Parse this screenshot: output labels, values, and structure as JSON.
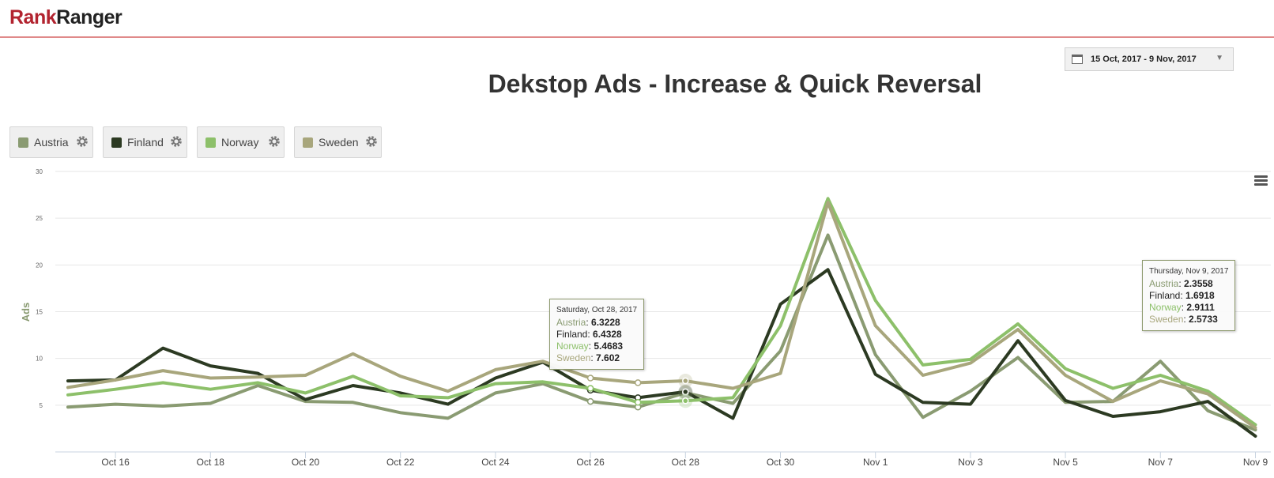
{
  "brand": {
    "rank": "Rank",
    "ranger": "Ranger"
  },
  "date_range": "15 Oct, 2017 - 9 Nov, 2017",
  "chart_title": "Dekstop Ads - Increase & Quick Reversal",
  "legend": [
    {
      "name": "Austria",
      "color": "#8a9b72"
    },
    {
      "name": "Finland",
      "color": "#2c3a22"
    },
    {
      "name": "Norway",
      "color": "#8dc06a"
    },
    {
      "name": "Sweden",
      "color": "#a8a67c"
    }
  ],
  "chart_data": {
    "type": "line",
    "title": "Dekstop Ads - Increase & Quick Reversal",
    "xlabel": "",
    "ylabel": "Ads",
    "ylim": [
      0,
      30
    ],
    "yticks": [
      5,
      10,
      15,
      20,
      25,
      30
    ],
    "ytick_labels": [
      "5",
      "10",
      "15",
      "20",
      "25",
      "30"
    ],
    "x": [
      "Oct 15",
      "Oct 16",
      "Oct 17",
      "Oct 18",
      "Oct 19",
      "Oct 20",
      "Oct 21",
      "Oct 22",
      "Oct 23",
      "Oct 24",
      "Oct 25",
      "Oct 26",
      "Oct 27",
      "Oct 28",
      "Oct 29",
      "Oct 30",
      "Oct 31",
      "Nov 1",
      "Nov 2",
      "Nov 3",
      "Nov 4",
      "Nov 5",
      "Nov 6",
      "Nov 7",
      "Nov 8",
      "Nov 9"
    ],
    "xticks": [
      "Oct 16",
      "Oct 18",
      "Oct 20",
      "Oct 22",
      "Oct 24",
      "Oct 26",
      "Oct 28",
      "Oct 30",
      "Nov 1",
      "Nov 3",
      "Nov 5",
      "Nov 7",
      "Nov 9"
    ],
    "series": [
      {
        "name": "Austria",
        "color": "#8a9b72",
        "values": [
          4.8,
          5.1,
          4.9,
          5.2,
          7.1,
          5.4,
          5.3,
          4.2,
          3.6,
          6.3,
          7.3,
          5.4,
          4.8,
          6.3228,
          5.2,
          10.8,
          23.2,
          10.4,
          3.7,
          6.5,
          10.1,
          5.3,
          5.4,
          9.7,
          4.4,
          2.3558
        ]
      },
      {
        "name": "Finland",
        "color": "#2c3a22",
        "values": [
          7.6,
          7.7,
          11.1,
          9.2,
          8.4,
          5.6,
          7.1,
          6.3,
          5.1,
          7.9,
          9.6,
          6.6,
          5.8,
          6.4328,
          3.6,
          15.8,
          19.5,
          8.3,
          5.3,
          5.1,
          11.9,
          5.5,
          3.8,
          4.3,
          5.4,
          1.6918
        ]
      },
      {
        "name": "Norway",
        "color": "#8dc06a",
        "values": [
          6.1,
          6.7,
          7.4,
          6.7,
          7.4,
          6.3,
          8.1,
          6.0,
          5.8,
          7.3,
          7.5,
          6.8,
          5.3,
          5.4683,
          5.8,
          13.5,
          27.1,
          16.2,
          9.3,
          9.9,
          13.7,
          8.9,
          6.8,
          8.2,
          6.5,
          2.9111
        ]
      },
      {
        "name": "Sweden",
        "color": "#a8a67c",
        "values": [
          6.9,
          7.7,
          8.7,
          7.9,
          8.0,
          8.2,
          10.5,
          8.1,
          6.5,
          8.8,
          9.7,
          7.9,
          7.4,
          7.602,
          6.8,
          8.4,
          26.7,
          13.5,
          8.2,
          9.5,
          13.1,
          8.2,
          5.4,
          7.6,
          6.2,
          2.5733
        ]
      }
    ],
    "tooltips": [
      {
        "date": "Saturday, Oct 28, 2017",
        "rows": [
          {
            "name": "Austria",
            "value": "6.3228"
          },
          {
            "name": "Finland",
            "value": "6.4328"
          },
          {
            "name": "Norway",
            "value": "5.4683"
          },
          {
            "name": "Sweden",
            "value": "7.602"
          }
        ]
      },
      {
        "date": "Thursday, Nov 9, 2017",
        "rows": [
          {
            "name": "Austria",
            "value": "2.3558"
          },
          {
            "name": "Finland",
            "value": "1.6918"
          },
          {
            "name": "Norway",
            "value": "2.9111"
          },
          {
            "name": "Sweden",
            "value": "2.5733"
          }
        ]
      }
    ]
  }
}
